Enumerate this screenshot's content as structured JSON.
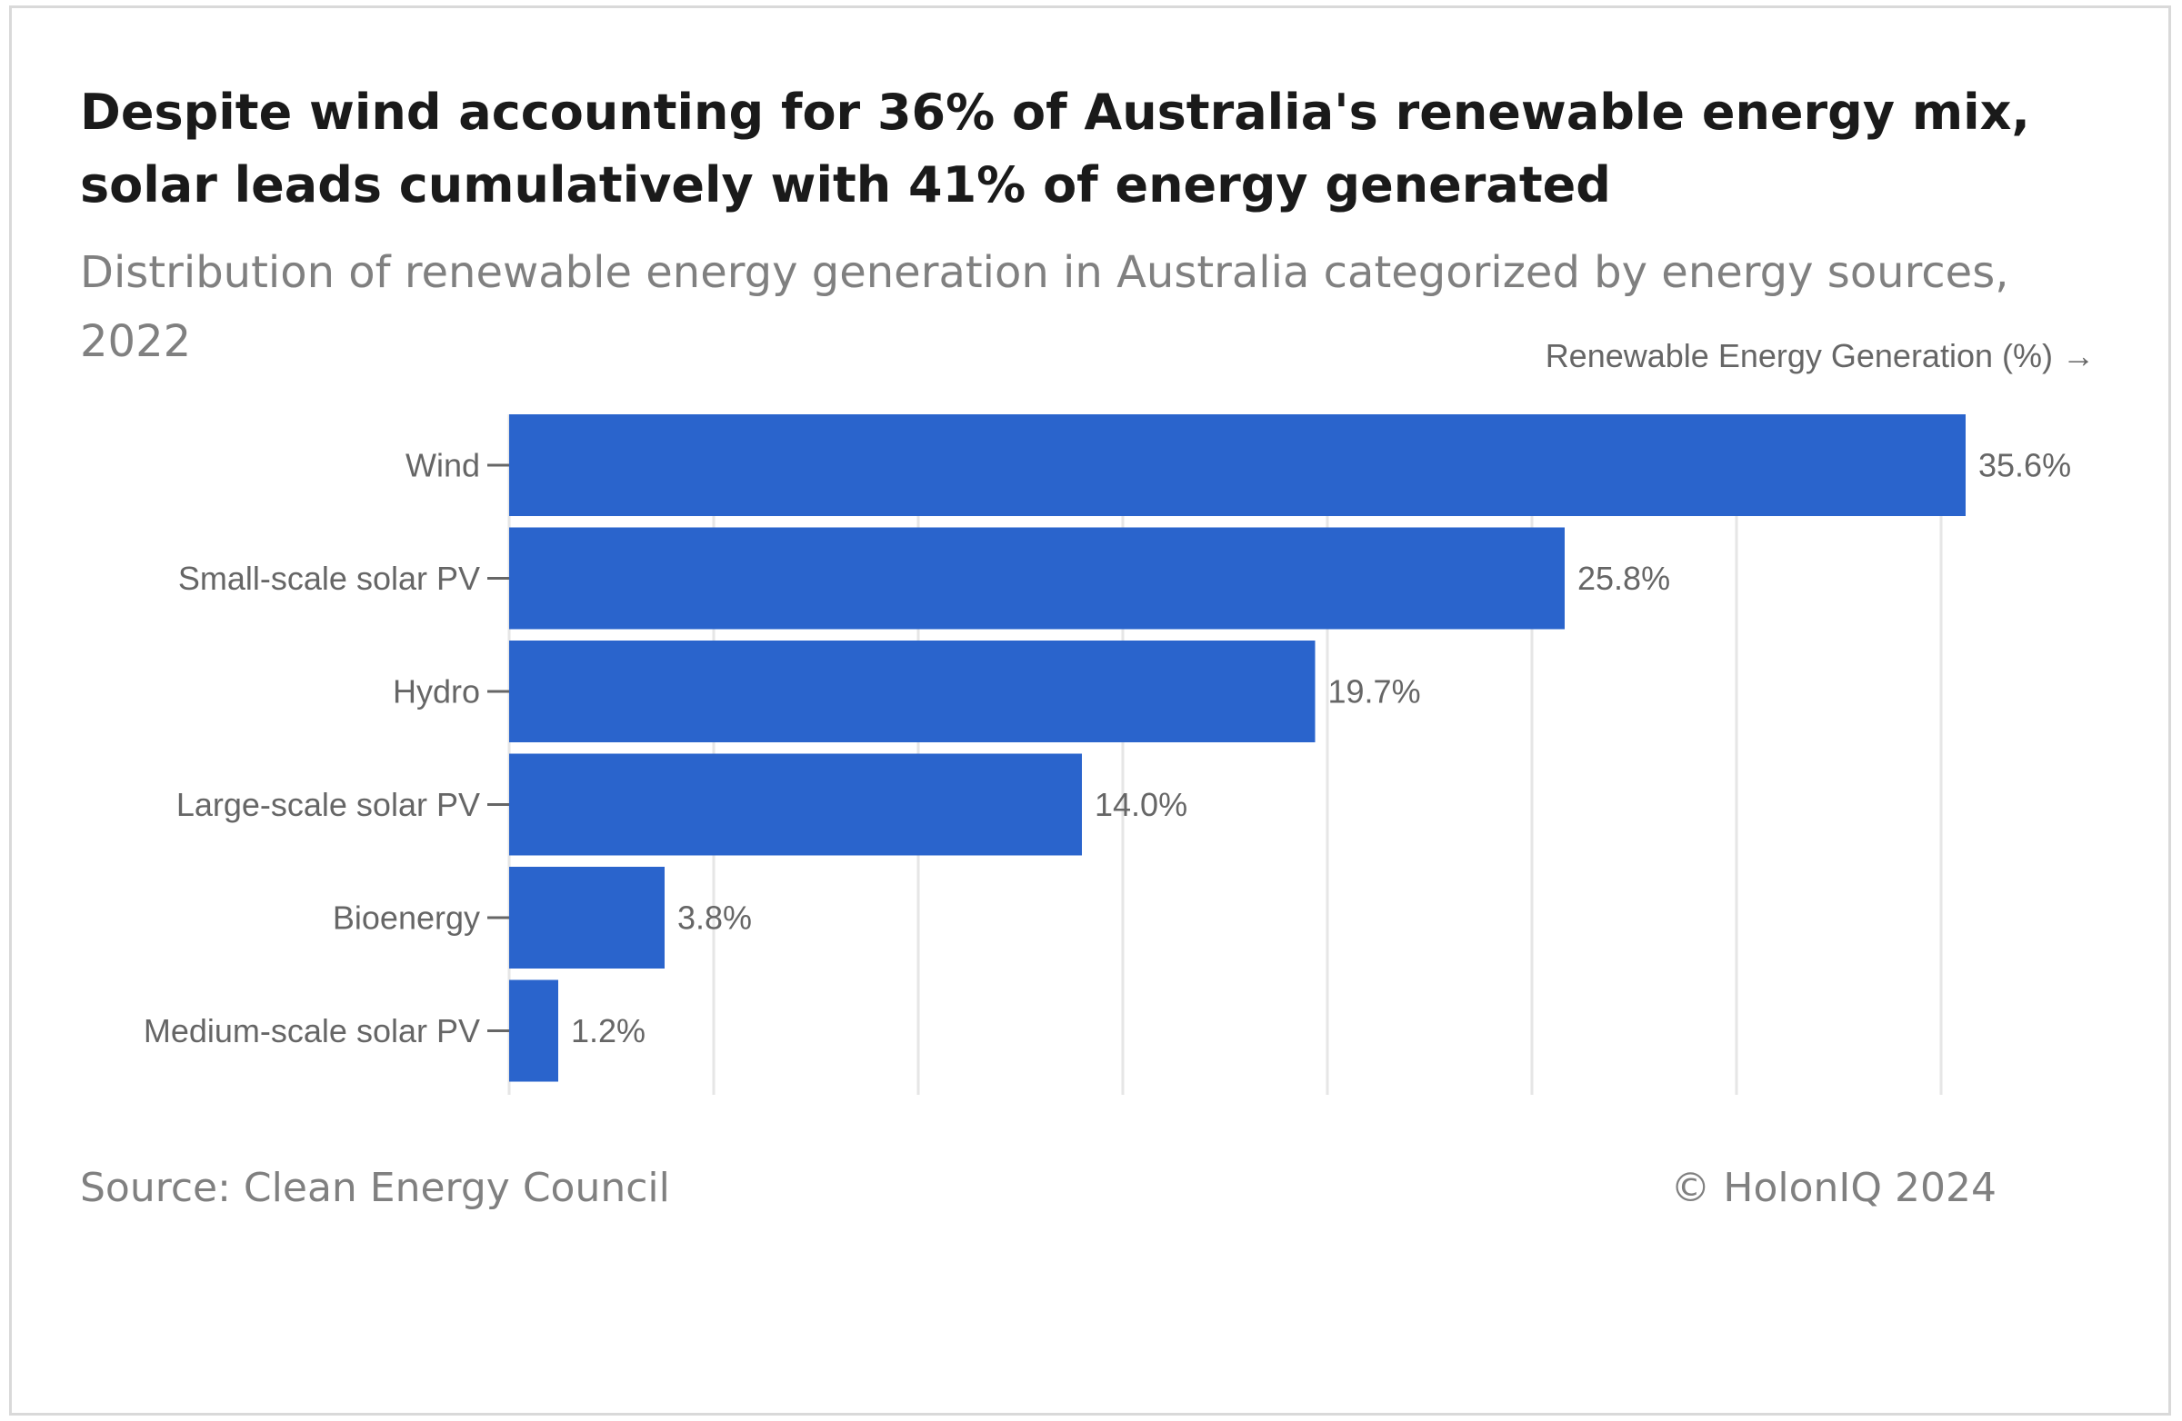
{
  "header": {
    "title": "Despite wind accounting for 36% of Australia's renewable energy mix, solar leads cumulatively with 41% of energy generated",
    "subtitle": "Distribution of renewable energy generation in Australia categorized by energy sources, 2022"
  },
  "footer": {
    "source": "Source: Clean Energy Council",
    "copyright": "© HolonIQ 2024"
  },
  "colors": {
    "bar": "#2a64cc",
    "grid": "#e6e6e6",
    "text_muted": "#666666"
  },
  "chart_data": {
    "type": "bar",
    "orientation": "horizontal",
    "xlabel": "Renewable Energy Generation (%) →",
    "ylabel": "",
    "categories": [
      "Wind",
      "Small-scale solar PV",
      "Hydro",
      "Large-scale solar PV",
      "Bioenergy",
      "Medium-scale solar PV"
    ],
    "values": [
      35.6,
      25.8,
      19.7,
      14.0,
      3.8,
      1.2
    ],
    "value_labels": [
      "35.6%",
      "25.8%",
      "19.7%",
      "14.0%",
      "3.8%",
      "1.2%"
    ],
    "xlim": [
      0,
      36
    ],
    "grid": true,
    "legend": "none"
  }
}
